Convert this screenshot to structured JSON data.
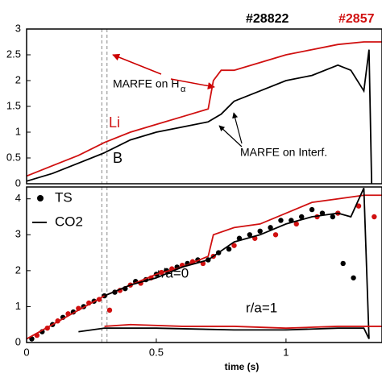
{
  "annotations": {
    "shot1": "#28822",
    "shot2": "#2857",
    "marfe_h": "MARFE on H",
    "marfe_h_sub": "α",
    "marfe_i": "MARFE on Interf.",
    "li": "Li",
    "b": "B",
    "r0": "r/a=0",
    "r1": "r/a=1"
  },
  "chart_data": [
    {
      "type": "line",
      "xlim": [
        0,
        1.37
      ],
      "ylim": [
        0,
        3
      ],
      "yticks": [
        0,
        0.5,
        1,
        1.5,
        2,
        2.5,
        3
      ],
      "vlines": [
        0.29,
        0.31
      ],
      "series": [
        {
          "color": "#d01010",
          "x": [
            0,
            0.1,
            0.2,
            0.3,
            0.4,
            0.5,
            0.6,
            0.7,
            0.72,
            0.75,
            0.8,
            0.9,
            1.0,
            1.1,
            1.2,
            1.3,
            1.37
          ],
          "values": [
            0.15,
            0.35,
            0.55,
            0.8,
            1.0,
            1.15,
            1.3,
            1.45,
            2.0,
            2.2,
            2.2,
            2.35,
            2.5,
            2.6,
            2.7,
            2.75,
            2.75
          ]
        },
        {
          "color": "#000000",
          "x": [
            0,
            0.1,
            0.2,
            0.3,
            0.4,
            0.5,
            0.6,
            0.7,
            0.75,
            0.8,
            0.9,
            1.0,
            1.1,
            1.2,
            1.25,
            1.3,
            1.32,
            1.33
          ],
          "values": [
            0.05,
            0.2,
            0.4,
            0.6,
            0.85,
            1.0,
            1.1,
            1.2,
            1.35,
            1.6,
            1.8,
            2.0,
            2.1,
            2.3,
            2.2,
            1.8,
            2.6,
            0
          ]
        }
      ]
    },
    {
      "type": "line",
      "xlim": [
        0,
        1.37
      ],
      "ylim": [
        0,
        4.33
      ],
      "yticks": [
        0,
        1,
        2,
        3,
        4
      ],
      "xticks": [
        0,
        0.5,
        1
      ],
      "xlabel": "time (s)",
      "vlines": [
        0.29,
        0.31
      ],
      "series": [
        {
          "name": "TS",
          "style": "dots",
          "color": "#000000",
          "x": [
            0.02,
            0.06,
            0.1,
            0.14,
            0.18,
            0.22,
            0.26,
            0.3,
            0.34,
            0.38,
            0.42,
            0.46,
            0.5,
            0.54,
            0.58,
            0.62,
            0.66,
            0.7,
            0.74,
            0.78,
            0.82,
            0.86,
            0.9,
            0.94,
            0.98,
            1.02,
            1.06,
            1.1,
            1.14,
            1.18,
            1.22,
            1.26
          ],
          "values": [
            0.1,
            0.3,
            0.5,
            0.7,
            0.85,
            1.0,
            1.15,
            1.3,
            1.4,
            1.5,
            1.7,
            1.75,
            1.9,
            2.0,
            2.1,
            2.2,
            2.3,
            2.3,
            2.5,
            2.6,
            2.9,
            3.0,
            3.1,
            3.2,
            3.4,
            3.4,
            3.5,
            3.7,
            3.6,
            3.5,
            2.2,
            1.8
          ]
        },
        {
          "style": "dots",
          "color": "#d01010",
          "x": [
            0.04,
            0.08,
            0.12,
            0.16,
            0.2,
            0.24,
            0.28,
            0.32,
            0.36,
            0.4,
            0.44,
            0.48,
            0.52,
            0.56,
            0.6,
            0.64,
            0.68,
            0.72,
            0.8,
            0.88,
            0.96,
            1.04,
            1.12,
            1.2,
            1.28,
            1.34
          ],
          "values": [
            0.2,
            0.4,
            0.6,
            0.8,
            0.95,
            1.1,
            1.2,
            0.9,
            1.45,
            1.6,
            1.65,
            1.8,
            1.95,
            2.05,
            2.15,
            2.25,
            2.2,
            2.4,
            2.7,
            2.9,
            3.0,
            3.3,
            3.5,
            3.6,
            3.8,
            3.5
          ]
        },
        {
          "style": "line",
          "color": "#d01010",
          "x": [
            0,
            0.1,
            0.2,
            0.3,
            0.4,
            0.5,
            0.6,
            0.7,
            0.72,
            0.8,
            0.9,
            1.0,
            1.1,
            1.2,
            1.3,
            1.37
          ],
          "values": [
            0.1,
            0.5,
            0.9,
            1.3,
            1.6,
            1.9,
            2.1,
            2.4,
            3.0,
            3.2,
            3.3,
            3.6,
            3.9,
            4.0,
            4.1,
            4.1
          ]
        },
        {
          "name": "CO2",
          "style": "line",
          "color": "#000000",
          "x": [
            0.3,
            0.4,
            0.5,
            0.6,
            0.7,
            0.8,
            0.9,
            1.0,
            1.1,
            1.2,
            1.25,
            1.3,
            1.32
          ],
          "values": [
            1.3,
            1.6,
            1.8,
            2.1,
            2.3,
            2.8,
            3.0,
            3.3,
            3.5,
            3.6,
            3.5,
            4.3,
            0.1
          ]
        },
        {
          "style": "line",
          "color": "#d01010",
          "x": [
            0.3,
            0.4,
            0.6,
            0.8,
            1.0,
            1.2,
            1.37
          ],
          "values": [
            0.45,
            0.5,
            0.45,
            0.45,
            0.4,
            0.45,
            0.45
          ]
        },
        {
          "style": "line",
          "color": "#000000",
          "x": [
            0.2,
            0.3,
            0.5,
            0.8,
            1.0,
            1.2,
            1.3,
            1.32
          ],
          "values": [
            0.3,
            0.4,
            0.4,
            0.35,
            0.35,
            0.4,
            0.4,
            0.1
          ]
        }
      ]
    }
  ]
}
